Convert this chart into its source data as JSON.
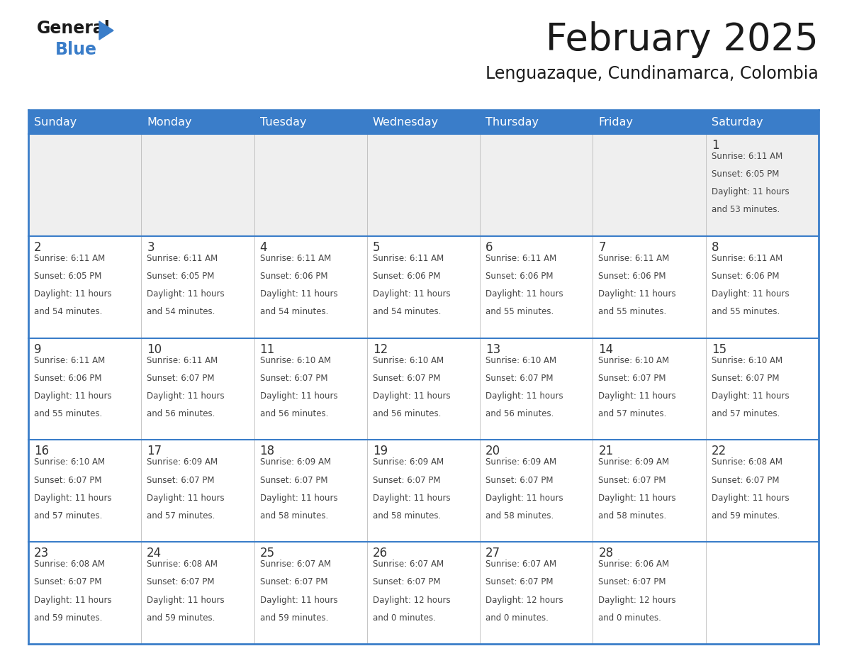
{
  "title": "February 2025",
  "subtitle": "Lenguazaque, Cundinamarca, Colombia",
  "header_color": "#3A7DC9",
  "header_text_color": "#FFFFFF",
  "cell_bg_white": "#FFFFFF",
  "cell_bg_gray": "#EFEFEF",
  "day_number_color": "#333333",
  "text_color": "#444444",
  "border_color": "#3A7DC9",
  "light_border_color": "#BBBBBB",
  "days_of_week": [
    "Sunday",
    "Monday",
    "Tuesday",
    "Wednesday",
    "Thursday",
    "Friday",
    "Saturday"
  ],
  "weeks": [
    [
      {
        "day": null,
        "sunrise": null,
        "sunset": null,
        "daylight_line1": null,
        "daylight_line2": null
      },
      {
        "day": null,
        "sunrise": null,
        "sunset": null,
        "daylight_line1": null,
        "daylight_line2": null
      },
      {
        "day": null,
        "sunrise": null,
        "sunset": null,
        "daylight_line1": null,
        "daylight_line2": null
      },
      {
        "day": null,
        "sunrise": null,
        "sunset": null,
        "daylight_line1": null,
        "daylight_line2": null
      },
      {
        "day": null,
        "sunrise": null,
        "sunset": null,
        "daylight_line1": null,
        "daylight_line2": null
      },
      {
        "day": null,
        "sunrise": null,
        "sunset": null,
        "daylight_line1": null,
        "daylight_line2": null
      },
      {
        "day": "1",
        "sunrise": "Sunrise: 6:11 AM",
        "sunset": "Sunset: 6:05 PM",
        "daylight_line1": "Daylight: 11 hours",
        "daylight_line2": "and 53 minutes."
      }
    ],
    [
      {
        "day": "2",
        "sunrise": "Sunrise: 6:11 AM",
        "sunset": "Sunset: 6:05 PM",
        "daylight_line1": "Daylight: 11 hours",
        "daylight_line2": "and 54 minutes."
      },
      {
        "day": "3",
        "sunrise": "Sunrise: 6:11 AM",
        "sunset": "Sunset: 6:05 PM",
        "daylight_line1": "Daylight: 11 hours",
        "daylight_line2": "and 54 minutes."
      },
      {
        "day": "4",
        "sunrise": "Sunrise: 6:11 AM",
        "sunset": "Sunset: 6:06 PM",
        "daylight_line1": "Daylight: 11 hours",
        "daylight_line2": "and 54 minutes."
      },
      {
        "day": "5",
        "sunrise": "Sunrise: 6:11 AM",
        "sunset": "Sunset: 6:06 PM",
        "daylight_line1": "Daylight: 11 hours",
        "daylight_line2": "and 54 minutes."
      },
      {
        "day": "6",
        "sunrise": "Sunrise: 6:11 AM",
        "sunset": "Sunset: 6:06 PM",
        "daylight_line1": "Daylight: 11 hours",
        "daylight_line2": "and 55 minutes."
      },
      {
        "day": "7",
        "sunrise": "Sunrise: 6:11 AM",
        "sunset": "Sunset: 6:06 PM",
        "daylight_line1": "Daylight: 11 hours",
        "daylight_line2": "and 55 minutes."
      },
      {
        "day": "8",
        "sunrise": "Sunrise: 6:11 AM",
        "sunset": "Sunset: 6:06 PM",
        "daylight_line1": "Daylight: 11 hours",
        "daylight_line2": "and 55 minutes."
      }
    ],
    [
      {
        "day": "9",
        "sunrise": "Sunrise: 6:11 AM",
        "sunset": "Sunset: 6:06 PM",
        "daylight_line1": "Daylight: 11 hours",
        "daylight_line2": "and 55 minutes."
      },
      {
        "day": "10",
        "sunrise": "Sunrise: 6:11 AM",
        "sunset": "Sunset: 6:07 PM",
        "daylight_line1": "Daylight: 11 hours",
        "daylight_line2": "and 56 minutes."
      },
      {
        "day": "11",
        "sunrise": "Sunrise: 6:10 AM",
        "sunset": "Sunset: 6:07 PM",
        "daylight_line1": "Daylight: 11 hours",
        "daylight_line2": "and 56 minutes."
      },
      {
        "day": "12",
        "sunrise": "Sunrise: 6:10 AM",
        "sunset": "Sunset: 6:07 PM",
        "daylight_line1": "Daylight: 11 hours",
        "daylight_line2": "and 56 minutes."
      },
      {
        "day": "13",
        "sunrise": "Sunrise: 6:10 AM",
        "sunset": "Sunset: 6:07 PM",
        "daylight_line1": "Daylight: 11 hours",
        "daylight_line2": "and 56 minutes."
      },
      {
        "day": "14",
        "sunrise": "Sunrise: 6:10 AM",
        "sunset": "Sunset: 6:07 PM",
        "daylight_line1": "Daylight: 11 hours",
        "daylight_line2": "and 57 minutes."
      },
      {
        "day": "15",
        "sunrise": "Sunrise: 6:10 AM",
        "sunset": "Sunset: 6:07 PM",
        "daylight_line1": "Daylight: 11 hours",
        "daylight_line2": "and 57 minutes."
      }
    ],
    [
      {
        "day": "16",
        "sunrise": "Sunrise: 6:10 AM",
        "sunset": "Sunset: 6:07 PM",
        "daylight_line1": "Daylight: 11 hours",
        "daylight_line2": "and 57 minutes."
      },
      {
        "day": "17",
        "sunrise": "Sunrise: 6:09 AM",
        "sunset": "Sunset: 6:07 PM",
        "daylight_line1": "Daylight: 11 hours",
        "daylight_line2": "and 57 minutes."
      },
      {
        "day": "18",
        "sunrise": "Sunrise: 6:09 AM",
        "sunset": "Sunset: 6:07 PM",
        "daylight_line1": "Daylight: 11 hours",
        "daylight_line2": "and 58 minutes."
      },
      {
        "day": "19",
        "sunrise": "Sunrise: 6:09 AM",
        "sunset": "Sunset: 6:07 PM",
        "daylight_line1": "Daylight: 11 hours",
        "daylight_line2": "and 58 minutes."
      },
      {
        "day": "20",
        "sunrise": "Sunrise: 6:09 AM",
        "sunset": "Sunset: 6:07 PM",
        "daylight_line1": "Daylight: 11 hours",
        "daylight_line2": "and 58 minutes."
      },
      {
        "day": "21",
        "sunrise": "Sunrise: 6:09 AM",
        "sunset": "Sunset: 6:07 PM",
        "daylight_line1": "Daylight: 11 hours",
        "daylight_line2": "and 58 minutes."
      },
      {
        "day": "22",
        "sunrise": "Sunrise: 6:08 AM",
        "sunset": "Sunset: 6:07 PM",
        "daylight_line1": "Daylight: 11 hours",
        "daylight_line2": "and 59 minutes."
      }
    ],
    [
      {
        "day": "23",
        "sunrise": "Sunrise: 6:08 AM",
        "sunset": "Sunset: 6:07 PM",
        "daylight_line1": "Daylight: 11 hours",
        "daylight_line2": "and 59 minutes."
      },
      {
        "day": "24",
        "sunrise": "Sunrise: 6:08 AM",
        "sunset": "Sunset: 6:07 PM",
        "daylight_line1": "Daylight: 11 hours",
        "daylight_line2": "and 59 minutes."
      },
      {
        "day": "25",
        "sunrise": "Sunrise: 6:07 AM",
        "sunset": "Sunset: 6:07 PM",
        "daylight_line1": "Daylight: 11 hours",
        "daylight_line2": "and 59 minutes."
      },
      {
        "day": "26",
        "sunrise": "Sunrise: 6:07 AM",
        "sunset": "Sunset: 6:07 PM",
        "daylight_line1": "Daylight: 12 hours",
        "daylight_line2": "and 0 minutes."
      },
      {
        "day": "27",
        "sunrise": "Sunrise: 6:07 AM",
        "sunset": "Sunset: 6:07 PM",
        "daylight_line1": "Daylight: 12 hours",
        "daylight_line2": "and 0 minutes."
      },
      {
        "day": "28",
        "sunrise": "Sunrise: 6:06 AM",
        "sunset": "Sunset: 6:07 PM",
        "daylight_line1": "Daylight: 12 hours",
        "daylight_line2": "and 0 minutes."
      },
      {
        "day": null,
        "sunrise": null,
        "sunset": null,
        "daylight_line1": null,
        "daylight_line2": null
      }
    ]
  ],
  "logo_color_general": "#1a1a1a",
  "logo_color_blue": "#3A7DC9",
  "logo_triangle_color": "#3A7DC9"
}
